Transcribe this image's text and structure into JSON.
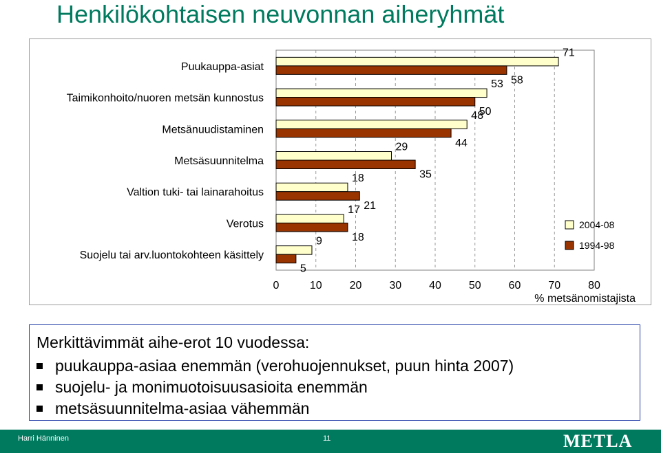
{
  "slide": {
    "title": "Henkilökohtaisen neuvonnan aiheryhmät",
    "footer_author": "Harri Hänninen",
    "page_number": "11",
    "logo_text": "METLA",
    "accent_color": "#007a5e"
  },
  "notes": {
    "heading": "Merkittävimmät aihe-erot 10 vuodessa:",
    "items": [
      "puukauppa-asiaa enemmän (verohuojennukset, puun hinta 2007)",
      "suojelu- ja monimuotoisuusasioita enemmän",
      "metsäsuunnitelma-asiaa vähemmän"
    ]
  },
  "chart_data": {
    "type": "bar",
    "orientation": "horizontal",
    "categories": [
      "Puukauppa-asiat",
      "Taimikonhoito/nuoren metsän kunnostus",
      "Metsänuudistaminen",
      "Metsäsuunnitelma",
      "Valtion tuki- tai lainarahoitus",
      "Verotus",
      "Suojelu tai arv.luontokohteen käsittely"
    ],
    "series": [
      {
        "name": "2004-08",
        "color": "#ffffcc",
        "values": [
          71,
          53,
          48,
          29,
          18,
          17,
          9
        ]
      },
      {
        "name": "1994-98",
        "color": "#993300",
        "values": [
          58,
          50,
          44,
          35,
          21,
          18,
          5
        ]
      }
    ],
    "xlabel": "% metsänomistajista",
    "xlim": [
      0,
      80
    ],
    "xticks": [
      0,
      10,
      20,
      30,
      40,
      50,
      60,
      70,
      80
    ],
    "grid": "vertical dashed",
    "legend_position": "right"
  }
}
